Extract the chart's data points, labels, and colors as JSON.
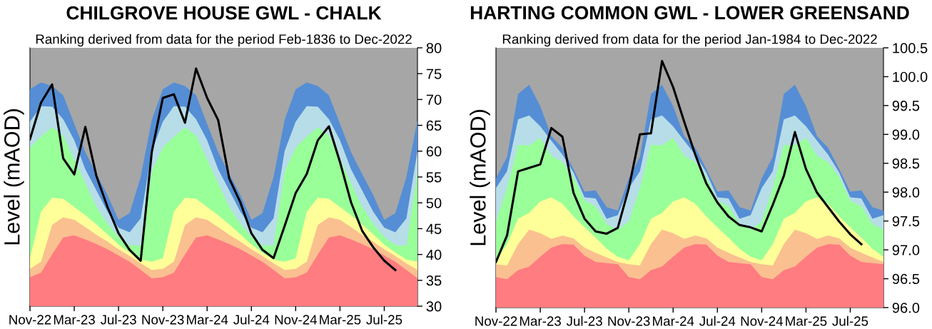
{
  "chart_data": [
    {
      "type": "area",
      "title": "CHILGROVE HOUSE GWL - CHALK",
      "subtitle": "Ranking derived from data for the period Feb-1836 to Dec-2022",
      "ylabel": "Level (mAOD)",
      "categories": [
        "Nov-22",
        null,
        null,
        null,
        "Mar-23",
        null,
        null,
        null,
        "Jul-23",
        null,
        null,
        null,
        "Nov-23",
        null,
        null,
        null,
        "Mar-24",
        null,
        null,
        null,
        "Jul-24",
        null,
        null,
        null,
        "Nov-24",
        null,
        null,
        null,
        "Mar-25",
        null,
        null,
        null,
        "Jul-25",
        null,
        null,
        null
      ],
      "ylim": [
        30,
        80
      ],
      "yticks": [
        30,
        35,
        40,
        45,
        50,
        55,
        60,
        65,
        70,
        75,
        80
      ],
      "bands": [
        {
          "axis": "y",
          "from": 30,
          "to": 80,
          "color": "#a6a6a6"
        }
      ],
      "series": [
        {
          "color": "#ff7c80",
          "values": [
            35.6,
            36.5,
            40.0,
            43.3,
            43.7,
            42.9,
            42.0,
            41.0,
            39.8,
            38.6,
            37.0,
            35.4,
            35.6,
            36.5,
            40.0,
            43.3,
            43.7,
            42.9,
            42.0,
            41.0,
            39.8,
            38.6,
            37.0,
            35.4,
            35.6,
            36.5,
            40.0,
            43.3,
            43.7,
            42.9,
            42.0,
            41.0,
            39.8,
            38.6,
            37.0,
            35.4
          ]
        },
        {
          "color": "#fac090",
          "values": [
            37.2,
            38.6,
            45.7,
            47.2,
            46.7,
            45.3,
            43.8,
            42.5,
            41.0,
            39.7,
            38.3,
            37.0,
            37.2,
            38.6,
            45.7,
            47.2,
            46.7,
            45.3,
            43.8,
            42.5,
            41.0,
            39.7,
            38.3,
            37.0,
            37.2,
            38.6,
            45.7,
            47.2,
            46.7,
            45.3,
            43.8,
            42.5,
            41.0,
            39.7,
            38.3,
            37.0
          ]
        },
        {
          "color": "#ffff99",
          "values": [
            39.3,
            48.3,
            51.0,
            50.8,
            49.2,
            47.6,
            45.8,
            43.9,
            41.9,
            40.4,
            39.0,
            38.6,
            39.3,
            48.3,
            51.0,
            50.8,
            49.2,
            47.6,
            45.8,
            43.9,
            41.9,
            40.4,
            39.0,
            38.6,
            39.3,
            48.3,
            51.0,
            50.8,
            49.2,
            47.6,
            45.8,
            43.9,
            41.9,
            40.4,
            39.0,
            38.6
          ]
        },
        {
          "color": "#99ff99",
          "values": [
            60.7,
            62.8,
            64.6,
            63.0,
            58.4,
            53.8,
            49.2,
            46.0,
            43.4,
            41.8,
            41.7,
            56.0,
            60.7,
            62.8,
            64.6,
            63.0,
            58.4,
            53.8,
            49.2,
            46.0,
            43.4,
            41.8,
            41.7,
            56.0,
            60.7,
            62.8,
            64.6,
            63.0,
            58.4,
            53.8,
            49.2,
            46.0,
            43.4,
            41.8,
            41.7,
            56.0
          ]
        },
        {
          "color": "#b7dde8",
          "values": [
            65.7,
            68.7,
            68.6,
            66.2,
            62.1,
            56.5,
            52.4,
            48.3,
            45.2,
            44.3,
            47.0,
            60.0,
            65.7,
            68.7,
            68.6,
            66.2,
            62.1,
            56.5,
            52.4,
            48.3,
            45.2,
            44.3,
            47.0,
            60.0,
            65.7,
            68.7,
            68.6,
            66.2,
            62.1,
            56.5,
            52.4,
            48.3,
            45.2,
            44.3,
            47.0,
            60.0
          ]
        },
        {
          "color": "#558ed5",
          "values": [
            72.0,
            73.3,
            72.6,
            70.8,
            65.3,
            59.8,
            55.6,
            51.5,
            46.7,
            48.0,
            55.0,
            66.0,
            72.0,
            73.3,
            72.6,
            70.8,
            65.3,
            59.8,
            55.6,
            51.5,
            46.7,
            48.0,
            55.0,
            66.0,
            72.0,
            73.3,
            72.6,
            70.8,
            65.3,
            59.8,
            55.6,
            51.5,
            46.7,
            48.0,
            55.0,
            66.0
          ]
        },
        {
          "type": "line",
          "color": "#000000",
          "values": [
            62.3,
            69.4,
            72.9,
            58.6,
            55.5,
            64.7,
            55.2,
            49.2,
            44.1,
            40.9,
            38.8,
            59.8,
            70.3,
            71.0,
            65.5,
            76.0,
            70.3,
            66.0,
            54.7,
            50.1,
            44.1,
            40.9,
            39.3,
            45.5,
            51.9,
            55.6,
            62.1,
            64.8,
            57.9,
            50.1,
            44.6,
            41.4,
            38.8,
            37.0,
            null,
            null
          ]
        }
      ]
    },
    {
      "type": "area",
      "title": "HARTING COMMON GWL - LOWER GREENSAND",
      "subtitle": "Ranking derived from data for the period Jan-1984 to Dec-2022",
      "ylabel": "Level (mAOD)",
      "categories": [
        "Nov-22",
        null,
        null,
        null,
        "Mar-23",
        null,
        null,
        null,
        "Jul-23",
        null,
        null,
        null,
        "Nov-23",
        null,
        null,
        null,
        "Mar-24",
        null,
        null,
        null,
        "Jul-24",
        null,
        null,
        null,
        "Nov-24",
        null,
        null,
        null,
        "Mar-25",
        null,
        null,
        null,
        "Jul-25",
        null,
        null,
        null
      ],
      "bands": [
        {
          "axis": "y",
          "from": 96,
          "to": 100.5,
          "color": "#a6a6a6"
        }
      ],
      "ylim": [
        96,
        100.5
      ],
      "yticks": [
        {
          "value": 96,
          "label": "96.0"
        },
        96.5,
        {
          "value": 97,
          "label": "97.0"
        },
        97.5,
        {
          "value": 98,
          "label": "98.0"
        },
        98.5,
        {
          "value": 99,
          "label": "99.0"
        },
        99.5,
        {
          "value": 100,
          "label": "100.0"
        },
        100.5
      ],
      "series": [
        {
          "color": "#ff7c80",
          "values": [
            96.53,
            96.49,
            96.65,
            96.71,
            96.88,
            97.04,
            97.1,
            97.09,
            96.9,
            96.79,
            96.77,
            96.75,
            96.53,
            96.49,
            96.65,
            96.71,
            96.88,
            97.04,
            97.1,
            97.09,
            96.9,
            96.79,
            96.77,
            96.75,
            96.53,
            96.49,
            96.65,
            96.71,
            96.88,
            97.04,
            97.1,
            97.09,
            96.9,
            96.79,
            96.77,
            96.75
          ]
        },
        {
          "color": "#fac090",
          "values": [
            96.75,
            96.73,
            97.1,
            97.35,
            97.29,
            97.19,
            97.25,
            97.2,
            97.04,
            96.95,
            96.87,
            96.79,
            96.75,
            96.73,
            97.1,
            97.35,
            97.29,
            97.19,
            97.25,
            97.2,
            97.04,
            96.95,
            96.87,
            96.79,
            96.75,
            96.73,
            97.1,
            97.35,
            97.29,
            97.19,
            97.25,
            97.2,
            97.04,
            96.95,
            96.87,
            96.79
          ]
        },
        {
          "color": "#ffff99",
          "values": [
            96.82,
            97.1,
            97.54,
            97.64,
            97.84,
            97.91,
            97.8,
            97.58,
            97.39,
            97.21,
            97.02,
            96.88,
            96.82,
            97.1,
            97.54,
            97.64,
            97.84,
            97.91,
            97.8,
            97.58,
            97.39,
            97.21,
            97.02,
            96.88,
            96.82,
            97.1,
            97.54,
            97.64,
            97.84,
            97.91,
            97.8,
            97.58,
            97.39,
            97.21,
            97.02,
            96.88
          ]
        },
        {
          "color": "#99ff99",
          "values": [
            97.49,
            98.07,
            98.82,
            98.81,
            98.94,
            98.63,
            98.52,
            98.26,
            97.85,
            97.76,
            97.45,
            97.35,
            97.49,
            98.07,
            98.82,
            98.81,
            98.94,
            98.63,
            98.52,
            98.26,
            97.85,
            97.76,
            97.45,
            97.35,
            97.49,
            98.07,
            98.82,
            98.81,
            98.94,
            98.63,
            98.52,
            98.26,
            97.85,
            97.76,
            97.45,
            97.35
          ]
        },
        {
          "color": "#b7dde8",
          "values": [
            98.07,
            98.36,
            99.26,
            99.33,
            99.14,
            98.89,
            98.65,
            98.34,
            97.91,
            97.89,
            97.54,
            97.6,
            98.07,
            98.36,
            99.26,
            99.33,
            99.14,
            98.89,
            98.65,
            98.34,
            97.91,
            97.89,
            97.54,
            97.6,
            98.07,
            98.36,
            99.26,
            99.33,
            99.14,
            98.89,
            98.65,
            98.34,
            97.91,
            97.89,
            97.54,
            97.6
          ]
        },
        {
          "color": "#558ed5",
          "values": [
            98.24,
            98.61,
            99.7,
            99.86,
            99.49,
            98.97,
            98.77,
            98.4,
            98.01,
            98.03,
            97.74,
            97.68,
            98.24,
            98.61,
            99.7,
            99.86,
            99.49,
            98.97,
            98.77,
            98.4,
            98.01,
            98.03,
            97.74,
            97.68,
            98.24,
            98.61,
            99.7,
            99.86,
            99.49,
            98.97,
            98.77,
            98.4,
            98.01,
            98.03,
            97.74,
            97.68
          ]
        },
        {
          "type": "line",
          "color": "#000000",
          "values": [
            96.79,
            97.25,
            98.36,
            98.42,
            98.48,
            99.11,
            98.96,
            97.99,
            97.54,
            97.32,
            97.28,
            97.38,
            98.07,
            99.0,
            99.02,
            100.27,
            99.82,
            99.22,
            98.65,
            98.15,
            97.82,
            97.58,
            97.43,
            97.39,
            97.32,
            97.78,
            98.28,
            99.04,
            98.4,
            97.99,
            97.74,
            97.49,
            97.27,
            97.1,
            null,
            null
          ]
        }
      ]
    }
  ]
}
